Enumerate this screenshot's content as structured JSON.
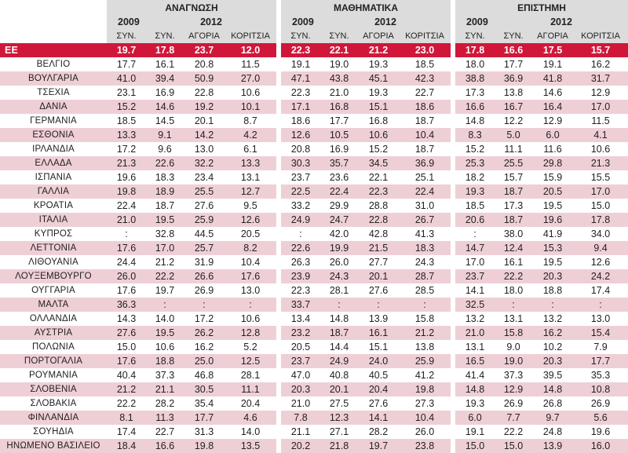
{
  "groups": [
    "ΑΝΑΓΝΩΣΗ",
    "ΜΑΘΗΜΑΤΙΚΑ",
    "ΕΠΙΣΤΗΜΗ"
  ],
  "years": {
    "y2009": "2009",
    "y2012": "2012"
  },
  "subs": [
    "ΣΥΝ.",
    "ΣΥΝ.",
    "ΑΓΟΡΙΑ",
    "ΚΟΡΙΤΣΙΑ"
  ],
  "colors": {
    "highlight": "#d0173a",
    "shade": "#efcfd6",
    "header": "#dcdcdc"
  },
  "rows": [
    {
      "country": "ΕΕ",
      "values": [
        "19.7",
        "17.8",
        "23.7",
        "12.0",
        "22.3",
        "22.1",
        "21.2",
        "23.0",
        "17.8",
        "16.6",
        "17.5",
        "15.7"
      ]
    },
    {
      "country": "ΒΕΛΓΙΟ",
      "values": [
        "17.7",
        "16.1",
        "20.8",
        "11.5",
        "19.1",
        "19.0",
        "19.3",
        "18.5",
        "18.0",
        "17.7",
        "19.1",
        "16.2"
      ]
    },
    {
      "country": "ΒΟΥΛΓΑΡΙΑ",
      "values": [
        "41.0",
        "39.4",
        "50.9",
        "27.0",
        "47.1",
        "43.8",
        "45.1",
        "42.3",
        "38.8",
        "36.9",
        "41.8",
        "31.7"
      ]
    },
    {
      "country": "ΤΣΕΧΙΑ",
      "values": [
        "23.1",
        "16.9",
        "22.8",
        "10.6",
        "22.3",
        "21.0",
        "19.3",
        "22.7",
        "17.3",
        "13.8",
        "14.6",
        "12.9"
      ]
    },
    {
      "country": "ΔΑΝΙΑ",
      "values": [
        "15.2",
        "14.6",
        "19.2",
        "10.1",
        "17.1",
        "16.8",
        "15.1",
        "18.6",
        "16.6",
        "16.7",
        "16.4",
        "17.0"
      ]
    },
    {
      "country": "ΓΕΡΜΑΝΙΑ",
      "values": [
        "18.5",
        "14.5",
        "20.1",
        "8.7",
        "18.6",
        "17.7",
        "16.8",
        "18.7",
        "14.8",
        "12.2",
        "12.9",
        "11.5"
      ]
    },
    {
      "country": "ΕΣΘΟΝΙΑ",
      "values": [
        "13.3",
        "9.1",
        "14.2",
        "4.2",
        "12.6",
        "10.5",
        "10.6",
        "10.4",
        "8.3",
        "5.0",
        "6.0",
        "4.1"
      ]
    },
    {
      "country": "ΙΡΛΑΝΔΙΑ",
      "values": [
        "17.2",
        "9.6",
        "13.0",
        "6.1",
        "20.8",
        "16.9",
        "15.2",
        "18.7",
        "15.2",
        "11.1",
        "11.6",
        "10.6"
      ]
    },
    {
      "country": "ΕΛΛΑΔΑ",
      "values": [
        "21.3",
        "22.6",
        "32.2",
        "13.3",
        "30.3",
        "35.7",
        "34.5",
        "36.9",
        "25.3",
        "25.5",
        "29.8",
        "21.3"
      ]
    },
    {
      "country": "ΙΣΠΑΝΙΑ",
      "values": [
        "19.6",
        "18.3",
        "23.4",
        "13.1",
        "23.7",
        "23.6",
        "22.1",
        "25.1",
        "18.2",
        "15.7",
        "15.9",
        "15.5"
      ]
    },
    {
      "country": "ΓΑΛΛΙΑ",
      "values": [
        "19.8",
        "18.9",
        "25.5",
        "12.7",
        "22.5",
        "22.4",
        "22.3",
        "22.4",
        "19.3",
        "18.7",
        "20.5",
        "17.0"
      ]
    },
    {
      "country": "ΚΡΟΑΤΙΑ",
      "values": [
        "22.4",
        "18.7",
        "27.6",
        "9.5",
        "33.2",
        "29.9",
        "28.8",
        "31.0",
        "18.5",
        "17.3",
        "19.5",
        "15.0"
      ]
    },
    {
      "country": "ΙΤΑΛΙΑ",
      "values": [
        "21.0",
        "19.5",
        "25.9",
        "12.6",
        "24.9",
        "24.7",
        "22.8",
        "26.7",
        "20.6",
        "18.7",
        "19.6",
        "17.8"
      ]
    },
    {
      "country": "ΚΥΠΡΟΣ",
      "values": [
        ":",
        "32.8",
        "44.5",
        "20.5",
        ":",
        "42.0",
        "42.8",
        "41.3",
        ":",
        "38.0",
        "41.9",
        "34.0"
      ]
    },
    {
      "country": "ΛΕΤΤΟΝΙΑ",
      "values": [
        "17.6",
        "17.0",
        "25.7",
        "8.2",
        "22.6",
        "19.9",
        "21.5",
        "18.3",
        "14.7",
        "12.4",
        "15.3",
        "9.4"
      ]
    },
    {
      "country": "ΛΙΘΟΥΑΝΙΑ",
      "values": [
        "24.4",
        "21.2",
        "31.9",
        "10.4",
        "26.3",
        "26.0",
        "27.7",
        "24.3",
        "17.0",
        "16.1",
        "19.5",
        "12.6"
      ]
    },
    {
      "country": "ΛΟΥΞΕΜΒΟΥΡΓΟ",
      "values": [
        "26.0",
        "22.2",
        "26.6",
        "17.6",
        "23.9",
        "24.3",
        "20.1",
        "28.7",
        "23.7",
        "22.2",
        "20.3",
        "24.2"
      ]
    },
    {
      "country": "ΟΥΓΓΑΡΙΑ",
      "values": [
        "17.6",
        "19.7",
        "26.9",
        "13.0",
        "22.3",
        "28.1",
        "27.6",
        "28.5",
        "14.1",
        "18.0",
        "18.8",
        "17.4"
      ]
    },
    {
      "country": "ΜΑΛΤΑ",
      "values": [
        "36.3",
        ":",
        ":",
        ":",
        "33.7",
        ":",
        ":",
        ":",
        "32.5",
        ":",
        ":",
        ":"
      ]
    },
    {
      "country": "ΟΛΛΑΝΔΙΑ",
      "values": [
        "14.3",
        "14.0",
        "17.2",
        "10.6",
        "13.4",
        "14.8",
        "13.9",
        "15.8",
        "13.2",
        "13.1",
        "13.2",
        "13.0"
      ]
    },
    {
      "country": "ΑΥΣΤΡΙΑ",
      "values": [
        "27.6",
        "19.5",
        "26.2",
        "12.8",
        "23.2",
        "18.7",
        "16.1",
        "21.2",
        "21.0",
        "15.8",
        "16.2",
        "15.4"
      ]
    },
    {
      "country": "ΠΟΛΩΝΙΑ",
      "values": [
        "15.0",
        "10.6",
        "16.2",
        "5.2",
        "20.5",
        "14.4",
        "15.1",
        "13.8",
        "13.1",
        "9.0",
        "10.2",
        "7.9"
      ]
    },
    {
      "country": "ΠΟΡΤΟΓΑΛΙΑ",
      "values": [
        "17.6",
        "18.8",
        "25.0",
        "12.5",
        "23.7",
        "24.9",
        "24.0",
        "25.9",
        "16.5",
        "19.0",
        "20.3",
        "17.7"
      ]
    },
    {
      "country": "ΡΟΥΜΑΝΙΑ",
      "values": [
        "40.4",
        "37.3",
        "46.8",
        "28.1",
        "47.0",
        "40.8",
        "40.5",
        "41.2",
        "41.4",
        "37.3",
        "39.5",
        "35.3"
      ]
    },
    {
      "country": "ΣΛΟΒΕΝΙΑ",
      "values": [
        "21.2",
        "21.1",
        "30.5",
        "11.1",
        "20.3",
        "20.1",
        "20.4",
        "19.8",
        "14.8",
        "12.9",
        "14.8",
        "10.8"
      ]
    },
    {
      "country": "ΣΛΟΒΑΚΙΑ",
      "values": [
        "22.2",
        "28.2",
        "35.4",
        "20.4",
        "21.0",
        "27.5",
        "27.6",
        "27.3",
        "19.3",
        "26.9",
        "26.8",
        "26.9"
      ]
    },
    {
      "country": "ΦΙΝΛΑΝΔΙΑ",
      "values": [
        "8.1",
        "11.3",
        "17.7",
        "4.6",
        "7.8",
        "12.3",
        "14.1",
        "10.4",
        "6.0",
        "7.7",
        "9.7",
        "5.6"
      ]
    },
    {
      "country": "ΣΟΥΗΔΙΑ",
      "values": [
        "17.4",
        "22.7",
        "31.3",
        "14.0",
        "21.1",
        "27.1",
        "28.2",
        "26.0",
        "19.1",
        "22.2",
        "24.8",
        "19.6"
      ]
    },
    {
      "country": "ΗΝΩΜΕΝΟ ΒΑΣΙΛΕΙΟ",
      "values": [
        "18.4",
        "16.6",
        "19.8",
        "13.5",
        "20.2",
        "21.8",
        "19.7",
        "23.8",
        "15.0",
        "15.0",
        "13.9",
        "16.0"
      ]
    }
  ]
}
